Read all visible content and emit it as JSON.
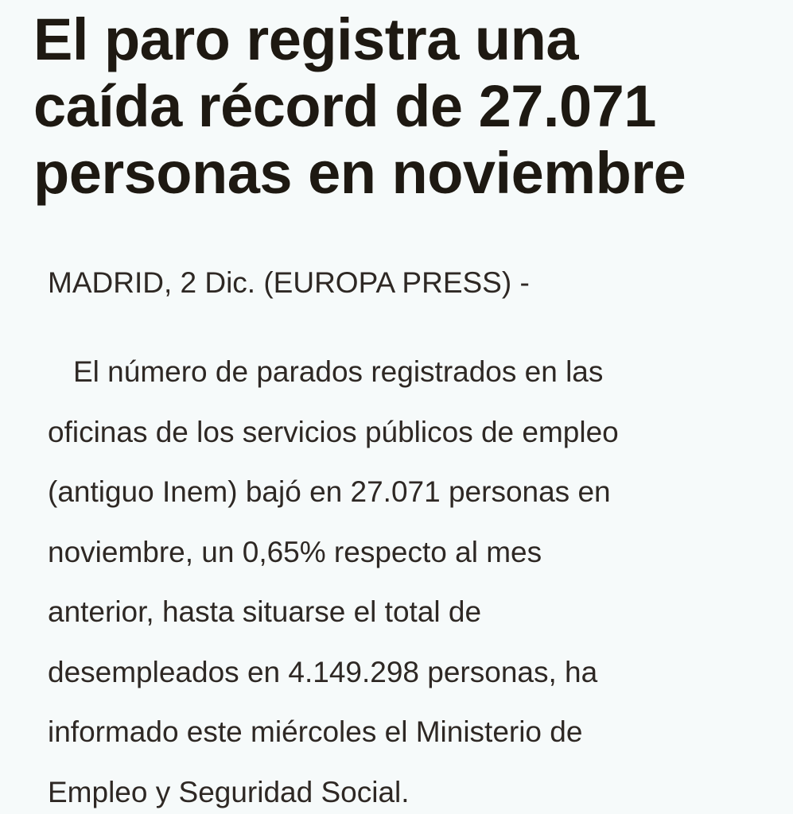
{
  "headline": {
    "lines": [
      "El paro registra una",
      "caída récord de 27.071",
      "personas en noviembre"
    ]
  },
  "dateline": "MADRID, 2 Dic. (EUROPA PRESS) -",
  "body": {
    "lines": [
      "El número de parados registrados en las",
      "oficinas de los servicios públicos de empleo",
      "(antiguo Inem) bajó en 27.071 personas en",
      "noviembre, un 0,65% respecto al mes",
      "anterior, hasta situarse el total de",
      "desempleados en 4.149.298 personas, ha",
      "informado este miércoles el Ministerio de",
      "Empleo y Seguridad Social."
    ]
  }
}
